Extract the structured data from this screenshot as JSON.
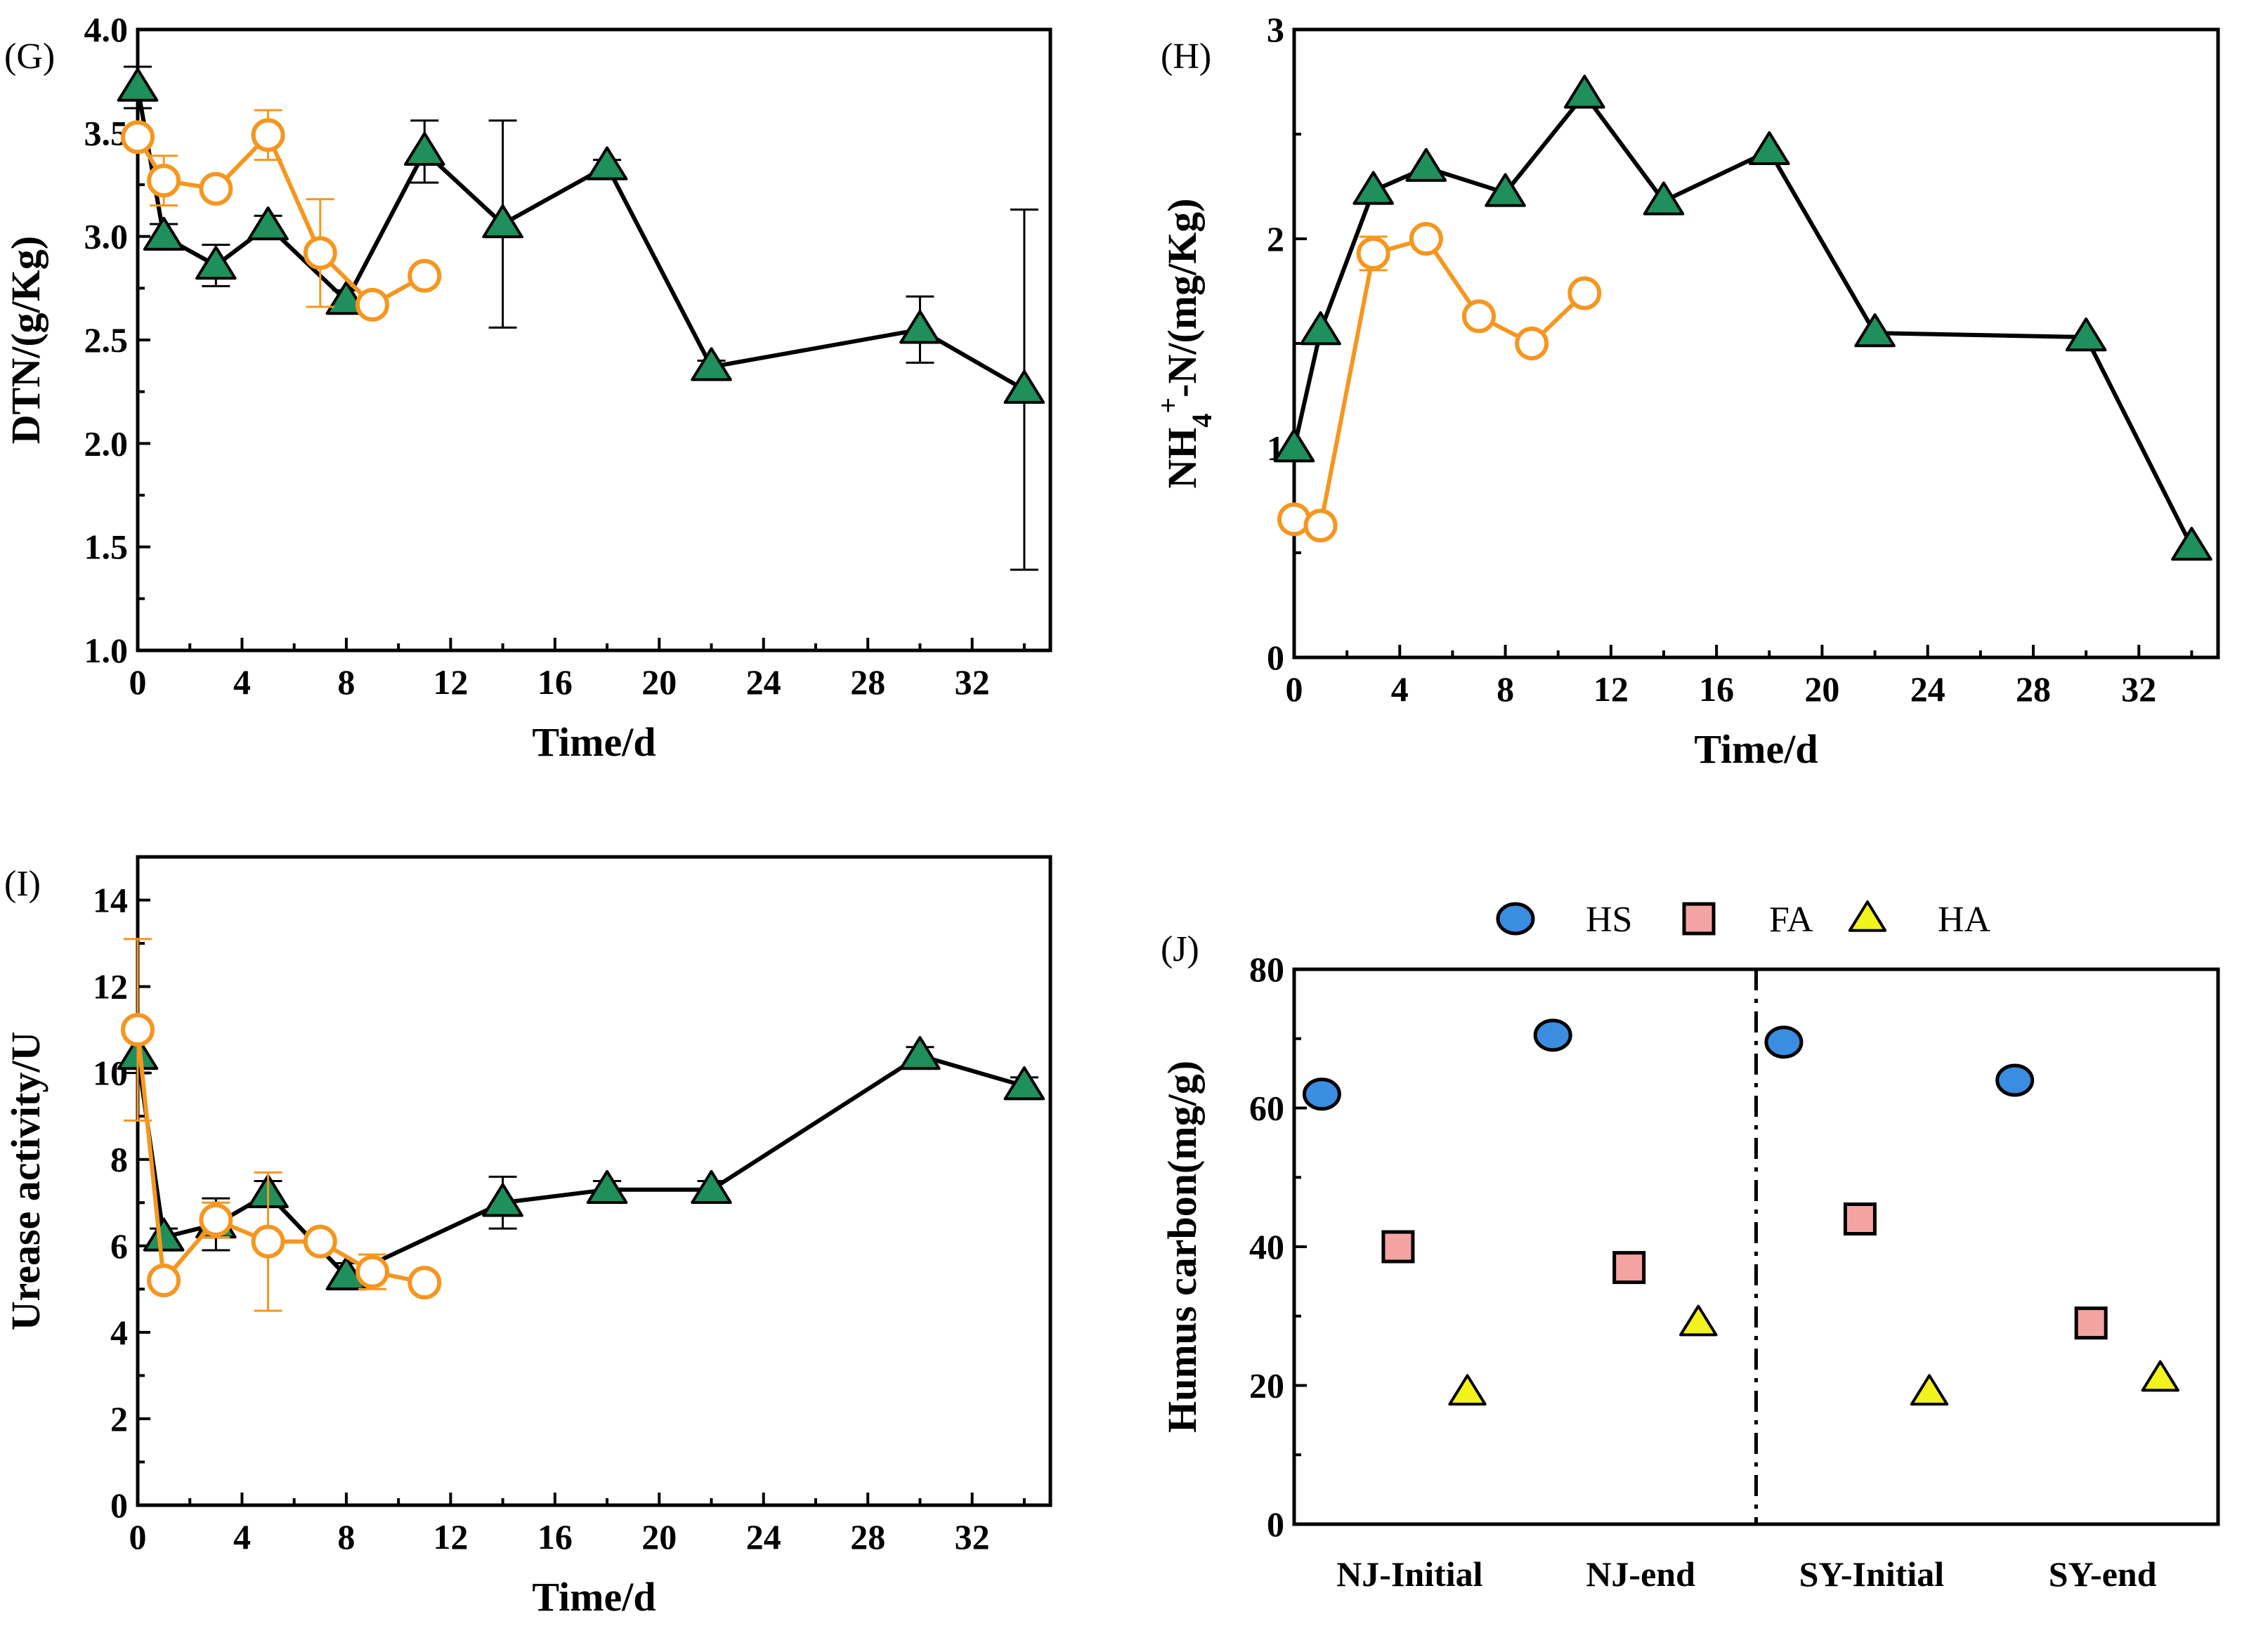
{
  "colors": {
    "green_fill": "#1f8f5c",
    "orange": "#f5961f",
    "hs_fill": "#3a8de0",
    "fa_fill": "#f4a3a3",
    "ha_fill": "#f2f21c",
    "black": "#000000"
  },
  "chart_data": [
    {
      "panel": "(G)",
      "type": "line",
      "xlabel": "Time/d",
      "ylabel": "DTN/(g/Kg)",
      "xlim": [
        0,
        35
      ],
      "ylim": [
        1.0,
        4.0
      ],
      "xticks": [
        0,
        4,
        8,
        12,
        16,
        20,
        24,
        28,
        32
      ],
      "yticks": [
        1.0,
        1.5,
        2.0,
        2.5,
        3.0,
        3.5,
        4.0
      ],
      "ytick_labels": [
        "1.0",
        "1.5",
        "2.0",
        "2.5",
        "3.0",
        "3.5",
        "4.0"
      ],
      "series": [
        {
          "marker": "triangle",
          "x": [
            0,
            1,
            3,
            5,
            8,
            11,
            14,
            18,
            22,
            30,
            34
          ],
          "y": [
            3.72,
            3.0,
            2.86,
            3.05,
            2.69,
            3.41,
            3.06,
            3.34,
            2.37,
            2.55,
            2.26
          ],
          "err": [
            0.1,
            0.06,
            0.1,
            0.05,
            0.05,
            0.15,
            0.5,
            0.03,
            0.03,
            0.16,
            0.87
          ]
        },
        {
          "marker": "circle",
          "x": [
            0,
            1,
            3,
            5,
            7,
            9,
            11
          ],
          "y": [
            3.48,
            3.27,
            3.23,
            3.49,
            2.92,
            2.67,
            2.81
          ],
          "err": [
            0.04,
            0.12,
            0.03,
            0.12,
            0.26,
            0.03,
            0.03
          ]
        }
      ]
    },
    {
      "panel": "(H)",
      "type": "line",
      "xlabel": "Time/d",
      "ylabel_parts": [
        "NH",
        "4",
        "+",
        "-N/(mg/Kg)"
      ],
      "xlim": [
        0,
        35
      ],
      "ylim": [
        0,
        3
      ],
      "xticks": [
        0,
        4,
        8,
        12,
        16,
        20,
        24,
        28,
        32
      ],
      "yticks": [
        0,
        1,
        2,
        3
      ],
      "ytick_labels": [
        "0",
        "1",
        "2",
        "3"
      ],
      "series": [
        {
          "marker": "triangle",
          "x": [
            0,
            1,
            3,
            5,
            8,
            11,
            14,
            18,
            22,
            30,
            34
          ],
          "y": [
            1.0,
            1.56,
            2.23,
            2.34,
            2.22,
            2.69,
            2.18,
            2.42,
            1.55,
            1.53,
            0.53
          ],
          "err": [
            0,
            0,
            0,
            0,
            0,
            0,
            0,
            0,
            0,
            0,
            0
          ]
        },
        {
          "marker": "circle",
          "x": [
            0,
            1,
            3,
            5,
            7,
            9,
            11
          ],
          "y": [
            0.66,
            0.63,
            1.93,
            2.0,
            1.63,
            1.5,
            1.74
          ],
          "err": [
            0,
            0,
            0.08,
            0.02,
            0,
            0,
            0
          ]
        }
      ]
    },
    {
      "panel": "(I)",
      "type": "line",
      "xlabel": "Time/d",
      "ylabel": "Urease activity/U",
      "xlim": [
        0,
        35
      ],
      "ylim": [
        0,
        15
      ],
      "xticks": [
        0,
        4,
        8,
        12,
        16,
        20,
        24,
        28,
        32
      ],
      "yticks": [
        0,
        2,
        4,
        6,
        8,
        10,
        12,
        14
      ],
      "ytick_labels": [
        "0",
        "2",
        "4",
        "6",
        "8",
        "10",
        "12",
        "14"
      ],
      "series": [
        {
          "marker": "triangle",
          "x": [
            0,
            1,
            3,
            5,
            8,
            14,
            18,
            22,
            30,
            34
          ],
          "y": [
            10.4,
            6.2,
            6.5,
            7.2,
            5.3,
            7.0,
            7.3,
            7.3,
            10.4,
            9.7
          ],
          "err": [
            0.4,
            0.2,
            0.6,
            0.3,
            0.3,
            0.6,
            0.2,
            0.2,
            0.2,
            0.2
          ]
        },
        {
          "marker": "circle",
          "x": [
            0,
            1,
            3,
            5,
            7,
            9,
            11
          ],
          "y": [
            11.0,
            5.2,
            6.6,
            6.1,
            6.1,
            5.4,
            5.15
          ],
          "err": [
            2.1,
            0.2,
            0.4,
            1.6,
            0.2,
            0.4,
            0.1
          ]
        }
      ]
    },
    {
      "panel": "(J)",
      "type": "scatter",
      "ylabel": "Humus carbon(mg/g)",
      "ylim": [
        0,
        80
      ],
      "yticks": [
        0,
        20,
        40,
        60,
        80
      ],
      "ytick_labels": [
        "0",
        "20",
        "40",
        "60",
        "80"
      ],
      "categories": [
        "NJ-Initial",
        "NJ-end",
        "SY-Initial",
        "SY-end"
      ],
      "divider_after_category": 1,
      "legend": {
        "placement": "top",
        "entries": [
          "HS",
          "FA",
          "HA"
        ]
      },
      "series": [
        {
          "name": "HS",
          "marker": "circle",
          "values": [
            62,
            70.5,
            69.5,
            64
          ]
        },
        {
          "name": "FA",
          "marker": "square",
          "values": [
            40,
            37,
            44,
            29
          ]
        },
        {
          "name": "HA",
          "marker": "triangle",
          "values": [
            19,
            29,
            19,
            21
          ]
        }
      ]
    }
  ]
}
